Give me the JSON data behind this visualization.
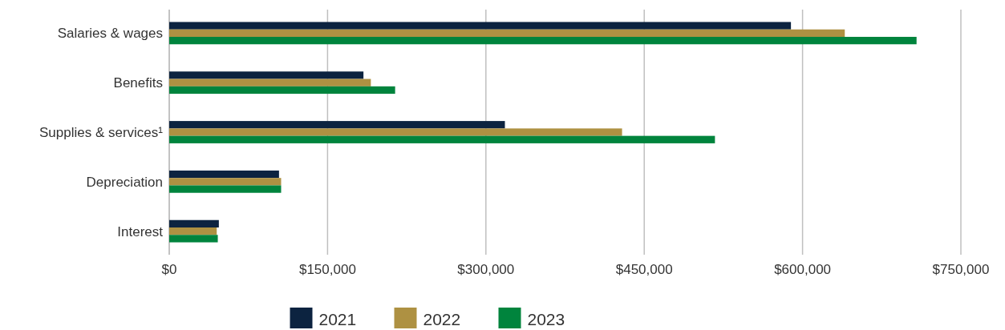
{
  "chart_data": {
    "type": "bar",
    "orientation": "horizontal",
    "categories": [
      "Salaries & wages",
      "Benefits",
      "Supplies & services¹",
      "Depreciation",
      "Interest"
    ],
    "series": [
      {
        "name": "2021",
        "color": "#0c2340",
        "values": [
          589000,
          184000,
          318000,
          104000,
          47000
        ]
      },
      {
        "name": "2022",
        "color": "#ae9142",
        "values": [
          640000,
          191000,
          429000,
          106000,
          45000
        ]
      },
      {
        "name": "2023",
        "color": "#00843d",
        "values": [
          708000,
          214000,
          517000,
          106000,
          46000
        ]
      }
    ],
    "xlim": [
      0,
      750000
    ],
    "xticks": [
      {
        "value": 0,
        "label": "$0"
      },
      {
        "value": 150000,
        "label": "$150,000"
      },
      {
        "value": 300000,
        "label": "$300,000"
      },
      {
        "value": 450000,
        "label": "$450,000"
      },
      {
        "value": 600000,
        "label": "$600,000"
      },
      {
        "value": 750000,
        "label": "$750,000"
      }
    ],
    "grid": "x",
    "legend": "bottom"
  }
}
